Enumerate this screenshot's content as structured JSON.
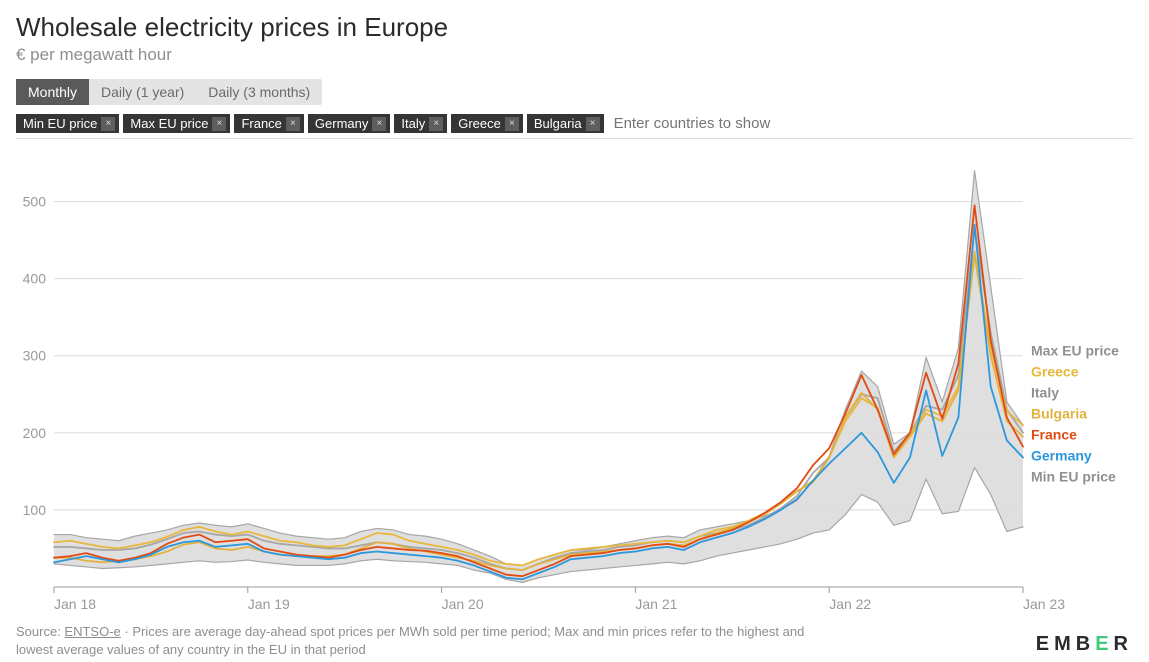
{
  "title": "Wholesale electricity prices in Europe",
  "subtitle": "€ per megawatt hour",
  "tabs": [
    {
      "label": "Monthly",
      "active": true
    },
    {
      "label": "Daily (1 year)",
      "active": false
    },
    {
      "label": "Daily (3 months)",
      "active": false
    }
  ],
  "chips": [
    {
      "label": "Min EU price"
    },
    {
      "label": "Max EU price"
    },
    {
      "label": "France"
    },
    {
      "label": "Germany"
    },
    {
      "label": "Italy"
    },
    {
      "label": "Greece"
    },
    {
      "label": "Bulgaria"
    }
  ],
  "filter_placeholder": "Enter countries to show",
  "chart": {
    "type": "line",
    "background_color": "#ffffff",
    "band_color": "#dcdcdc",
    "grid_color": "#dcdcdc",
    "axis_color": "#9a9a9a",
    "tick_font_size": 14,
    "x_axis": {
      "min": 0,
      "max": 60,
      "ticks": [
        {
          "value": 0,
          "label": "Jan 18"
        },
        {
          "value": 12,
          "label": "Jan 19"
        },
        {
          "value": 24,
          "label": "Jan 20"
        },
        {
          "value": 36,
          "label": "Jan 21"
        },
        {
          "value": 48,
          "label": "Jan 22"
        },
        {
          "value": 60,
          "label": "Jan 23"
        }
      ]
    },
    "y_axis": {
      "min": 0,
      "max": 550,
      "ticks": [
        {
          "value": 100,
          "label": "100"
        },
        {
          "value": 200,
          "label": "200"
        },
        {
          "value": 300,
          "label": "300"
        },
        {
          "value": 400,
          "label": "400"
        },
        {
          "value": 500,
          "label": "500"
        }
      ]
    },
    "band": {
      "upper_key": "Max EU price",
      "lower_key": "Min EU price"
    },
    "series": [
      {
        "name": "Max EU price",
        "color": "#a6a6a6",
        "width": 1.2,
        "legend_color": "#909090",
        "values": [
          68,
          68,
          64,
          62,
          60,
          66,
          70,
          74,
          80,
          83,
          80,
          78,
          82,
          76,
          70,
          66,
          64,
          62,
          64,
          72,
          76,
          74,
          68,
          66,
          62,
          56,
          48,
          40,
          30,
          28,
          36,
          42,
          48,
          48,
          52,
          56,
          60,
          64,
          66,
          64,
          74,
          78,
          82,
          86,
          92,
          100,
          112,
          138,
          170,
          230,
          280,
          260,
          185,
          200,
          298,
          240,
          310,
          540,
          390,
          240,
          210
        ],
        "width_final": 1.5
      },
      {
        "name": "Min EU price",
        "color": "#a6a6a6",
        "width": 1.2,
        "legend_color": "#909090",
        "values": [
          30,
          28,
          26,
          24,
          25,
          26,
          28,
          30,
          32,
          34,
          32,
          33,
          35,
          32,
          30,
          28,
          28,
          28,
          30,
          34,
          36,
          34,
          33,
          32,
          30,
          28,
          22,
          18,
          10,
          6,
          12,
          16,
          20,
          22,
          24,
          26,
          28,
          30,
          32,
          30,
          34,
          40,
          44,
          48,
          52,
          56,
          62,
          70,
          74,
          94,
          120,
          110,
          80,
          86,
          140,
          95,
          98,
          155,
          120,
          72,
          78
        ]
      },
      {
        "name": "Italy",
        "color": "#a6a6a6",
        "width": 1.8,
        "legend_color": "#909090",
        "values": [
          52,
          52,
          50,
          48,
          48,
          50,
          55,
          62,
          70,
          72,
          68,
          66,
          68,
          60,
          56,
          54,
          52,
          50,
          50,
          54,
          58,
          56,
          52,
          50,
          48,
          44,
          38,
          30,
          24,
          22,
          30,
          38,
          44,
          46,
          48,
          52,
          54,
          58,
          60,
          58,
          66,
          70,
          74,
          80,
          90,
          102,
          118,
          148,
          168,
          220,
          250,
          245,
          175,
          200,
          235,
          230,
          275,
          465,
          330,
          230,
          200
        ]
      },
      {
        "name": "Greece",
        "color": "#e8b83c",
        "width": 1.8,
        "legend_color": "#e8b83c",
        "values": [
          58,
          60,
          56,
          52,
          50,
          54,
          58,
          65,
          74,
          78,
          72,
          68,
          72,
          66,
          60,
          58,
          54,
          52,
          54,
          62,
          70,
          68,
          60,
          56,
          52,
          48,
          42,
          34,
          30,
          28,
          36,
          42,
          48,
          50,
          52,
          54,
          56,
          58,
          60,
          58,
          66,
          74,
          78,
          86,
          96,
          110,
          124,
          138,
          168,
          215,
          245,
          232,
          172,
          198,
          230,
          222,
          260,
          435,
          310,
          228,
          210
        ]
      },
      {
        "name": "Bulgaria",
        "color": "#e2b241",
        "width": 1.8,
        "legend_color": "#e2b241",
        "values": [
          38,
          38,
          34,
          32,
          34,
          36,
          40,
          46,
          55,
          58,
          50,
          48,
          52,
          46,
          42,
          40,
          40,
          40,
          42,
          50,
          58,
          56,
          50,
          46,
          42,
          38,
          34,
          28,
          24,
          22,
          30,
          36,
          42,
          44,
          46,
          48,
          50,
          54,
          56,
          54,
          62,
          70,
          76,
          84,
          94,
          108,
          124,
          136,
          168,
          220,
          252,
          230,
          168,
          195,
          225,
          215,
          255,
          430,
          300,
          215,
          195
        ]
      },
      {
        "name": "France",
        "color": "#e24b13",
        "width": 1.8,
        "legend_color": "#e24b13",
        "values": [
          38,
          40,
          44,
          38,
          34,
          38,
          44,
          56,
          64,
          68,
          58,
          60,
          62,
          50,
          46,
          42,
          40,
          38,
          42,
          48,
          52,
          50,
          48,
          47,
          44,
          40,
          32,
          24,
          16,
          14,
          22,
          30,
          40,
          42,
          44,
          48,
          50,
          54,
          56,
          52,
          62,
          68,
          74,
          84,
          96,
          110,
          128,
          158,
          180,
          225,
          275,
          230,
          172,
          200,
          278,
          218,
          290,
          495,
          320,
          220,
          182
        ]
      },
      {
        "name": "Germany",
        "color": "#2c97dd",
        "width": 1.8,
        "legend_color": "#2c97dd",
        "values": [
          32,
          36,
          40,
          36,
          32,
          36,
          42,
          52,
          58,
          60,
          52,
          54,
          56,
          46,
          42,
          40,
          38,
          36,
          38,
          44,
          46,
          44,
          42,
          40,
          38,
          34,
          28,
          20,
          12,
          10,
          18,
          26,
          36,
          38,
          40,
          44,
          46,
          50,
          52,
          48,
          58,
          64,
          70,
          78,
          88,
          100,
          114,
          138,
          160,
          180,
          200,
          175,
          135,
          168,
          255,
          170,
          220,
          470,
          260,
          190,
          168
        ]
      }
    ],
    "legend_order": [
      "Max EU price",
      "Greece",
      "Italy",
      "Bulgaria",
      "France",
      "Germany",
      "Min EU price"
    ],
    "legend_font_size": 14,
    "legend_font_weight": 600,
    "legend_start_y": 300,
    "legend_line_h": 21
  },
  "footer": {
    "source_prefix": "Source: ",
    "source_link": "ENTSO-e",
    "source_rest": " · Prices are average day-ahead spot prices per MWh sold per time period; Max and min prices refer to the highest and lowest average values of any country in the EU in that period"
  },
  "brand": {
    "pre": "EMB",
    "accent": "E",
    "post": "R"
  }
}
